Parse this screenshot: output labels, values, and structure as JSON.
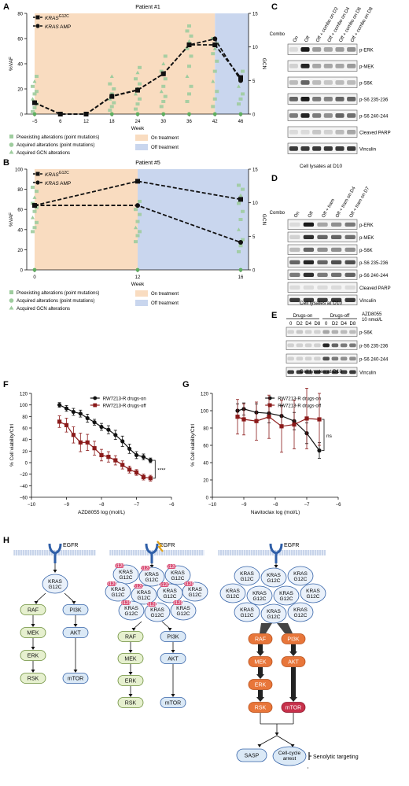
{
  "panels": {
    "A": "A",
    "B": "B",
    "C": "C",
    "D": "D",
    "E": "E",
    "F": "F",
    "G": "G",
    "H": "H"
  },
  "panelA": {
    "title": "Patient #1",
    "ylabel": "%VAF",
    "y2label": "GCN",
    "xlabel": "Week",
    "legend_kras_g12c_prefix": "KRAS",
    "legend_kras_g12c_sup": "G12C",
    "legend_kras_amp_prefix": "KRAS",
    "legend_kras_amp_suffix": " AMP",
    "legend_preexisting": "Preexisting alterations (point mutations)",
    "legend_acquired_point": "Acquired alterations (point mutations)",
    "legend_acquired_gcn": "Acquired GCN alterations",
    "legend_on": "On treatment",
    "legend_off": "Off treatment"
  },
  "panelB": {
    "title": "Patient #5",
    "ylabel": "%VAF",
    "y2label": "GCN",
    "xlabel": "Week",
    "legend_kras_g12c_prefix": "KRAS",
    "legend_kras_g12c_sup": "G12C",
    "legend_kras_amp_prefix": "KRAS",
    "legend_kras_amp_suffix": " AMP",
    "legend_preexisting": "Preexisting alterations (point mutations)",
    "legend_acquired_point": "Acquired alterations (point mutations)",
    "legend_acquired_gcn": "Acquired GCN alterations",
    "legend_on": "On treatment",
    "legend_off": "Off treatment"
  },
  "blotC": {
    "combo": "Combo",
    "cols": [
      "On",
      "Off",
      "Off + combo on D2",
      "Off + combo on D4",
      "Off + combo on D6",
      "Off + combo on D8"
    ],
    "rows": [
      "p-ERK",
      "p-MEK",
      "p-S6K",
      "p-S6 235-236",
      "p-S6 240-244",
      "Cleaved PARP",
      "Vinculin"
    ],
    "caption": "Cell lysates at D10"
  },
  "blotD": {
    "combo": "Combo",
    "cols": [
      "On",
      "Off",
      "Off + tram",
      "Off + tram on D4",
      "Off + tram on D7"
    ],
    "rows": [
      "p-ERK",
      "p-MEK",
      "p-S6K",
      "p-S6 235-236",
      "p-S6 240-244",
      "Cleaved PARP",
      "Vinculin"
    ],
    "caption": "Cell lysates at D10"
  },
  "blotE": {
    "group_on": "Drugs-on",
    "group_off": "Drugs-off",
    "drug": "AZD8055",
    "dose": "10 nmol/L",
    "cols": [
      "0",
      "D2",
      "D4",
      "D8",
      "0",
      "D2",
      "D4",
      "D8"
    ],
    "rows": [
      "p-S6K",
      "p-S6 235-236",
      "p-S6 240-244",
      "Vinculin"
    ],
    "caption": "Cell lysates at D10"
  },
  "pathway": {
    "egfr": "EGFR",
    "kras_line1": "KRAS",
    "kras_line2": "G12C",
    "raf": "RAF",
    "pi3k": "PI3K",
    "mek": "MEK",
    "akt": "AKT",
    "erk": "ERK",
    "rsk": "RSK",
    "mtor": "mTOR",
    "sasp": "SASP",
    "arrest_line1": "Cell-cycle",
    "arrest_line2": "arrest",
    "senolytic": "Senolytic targeting",
    "badge": "G12C"
  },
  "colors": {
    "on_treatment": "#f9dcc0",
    "off_treatment": "#c9d6ee",
    "green": "#66b266",
    "red": "#8b1a1a",
    "orange": "#e8763a",
    "blue_node": "#dbe9f6",
    "green_node": "#e6f0cf",
    "ras_pink": "#d94d74"
  },
  "chart_data": [
    {
      "panel": "A",
      "type": "line",
      "title": "Patient #1",
      "xlabel": "Week",
      "ylabel": "%VAF",
      "y2label": "GCN",
      "categories": [
        "−5",
        "6",
        "12",
        "18",
        "24",
        "30",
        "36",
        "42",
        "46"
      ],
      "ylim": [
        0,
        80
      ],
      "y2lim": [
        0,
        15
      ],
      "series": [
        {
          "name": "KRAS G12C",
          "axis": "left",
          "values": [
            9,
            0,
            0,
            14,
            19,
            32,
            55,
            55,
            29
          ]
        },
        {
          "name": "KRAS AMP",
          "axis": "right",
          "values": [
            1.7,
            0,
            0,
            2.7,
            3.6,
            6,
            10.3,
            11.2,
            5
          ]
        }
      ],
      "shading": {
        "on_treatment": [
          "−5",
          "42"
        ],
        "off_treatment": [
          "42",
          "46"
        ]
      },
      "legend": "top-left"
    },
    {
      "panel": "B",
      "type": "line",
      "title": "Patient #5",
      "xlabel": "Week",
      "ylabel": "%VAF",
      "y2label": "GCN",
      "categories": [
        "0",
        "12",
        "16"
      ],
      "ylim": [
        0,
        100
      ],
      "y2lim": [
        0,
        15
      ],
      "series": [
        {
          "name": "KRAS G12C",
          "axis": "left",
          "values": [
            64,
            88,
            70
          ]
        },
        {
          "name": "KRAS AMP",
          "axis": "right",
          "values": [
            9.6,
            9.6,
            4.1
          ]
        }
      ],
      "shading": {
        "on_treatment": [
          "0",
          "12"
        ],
        "off_treatment": [
          "12",
          "16"
        ]
      },
      "legend": "top-left"
    },
    {
      "panel": "F",
      "type": "line",
      "xlabel": "AZD8055 log (mol/L)",
      "ylabel": "% Cell viability/Ctrl",
      "xlim": [
        -10,
        -6
      ],
      "ylim": [
        -60,
        120
      ],
      "xticks": [
        "−10",
        "−9",
        "−8",
        "−7",
        "−6"
      ],
      "yticks": [
        "−60",
        "−40",
        "−20",
        "0",
        "20",
        "40",
        "60",
        "80",
        "100",
        "120"
      ],
      "series": [
        {
          "name": "RW7213-R drugs-on",
          "x": [
            -9.2,
            -9.0,
            -8.8,
            -8.6,
            -8.4,
            -8.2,
            -8.0,
            -7.8,
            -7.6,
            -7.4,
            -7.2,
            -7.0,
            -6.8,
            -6.6
          ],
          "y": [
            100,
            94,
            88,
            85,
            77,
            70,
            62,
            57,
            48,
            37,
            24,
            13,
            10,
            4
          ]
        },
        {
          "name": "RW7213-R drugs-off",
          "x": [
            -9.2,
            -9.0,
            -8.8,
            -8.6,
            -8.4,
            -8.2,
            -8.0,
            -7.8,
            -7.6,
            -7.4,
            -7.2,
            -7.0,
            -6.8,
            -6.6
          ],
          "y": [
            71,
            65,
            48,
            35,
            35,
            25,
            13,
            10,
            4,
            -4,
            -12,
            -17,
            -25,
            -27
          ]
        }
      ],
      "annotation": "****",
      "legend": "top-right"
    },
    {
      "panel": "G",
      "type": "line",
      "xlabel": "Navitoclax log (mol/L)",
      "ylabel": "% Cell viability/Ctrl",
      "xlim": [
        -10,
        -6
      ],
      "ylim": [
        0,
        120
      ],
      "xticks": [
        "−10",
        "−9",
        "−8",
        "−7",
        "−6"
      ],
      "yticks": [
        "0",
        "20",
        "40",
        "60",
        "80",
        "100",
        "120"
      ],
      "series": [
        {
          "name": "RW7213-R drugs-on",
          "x": [
            -9.2,
            -9.0,
            -8.6,
            -8.2,
            -7.8,
            -7.4,
            -7.0,
            -6.6
          ],
          "y": [
            100,
            102,
            98,
            97,
            94,
            88,
            74,
            54
          ]
        },
        {
          "name": "RW7213-R drugs-off",
          "x": [
            -9.2,
            -9.0,
            -8.6,
            -8.2,
            -7.8,
            -7.4,
            -7.0,
            -6.6
          ],
          "y": [
            93,
            90,
            88,
            93,
            82,
            84,
            91,
            90
          ]
        }
      ],
      "annotation": "ns",
      "legend": "top-right"
    }
  ]
}
